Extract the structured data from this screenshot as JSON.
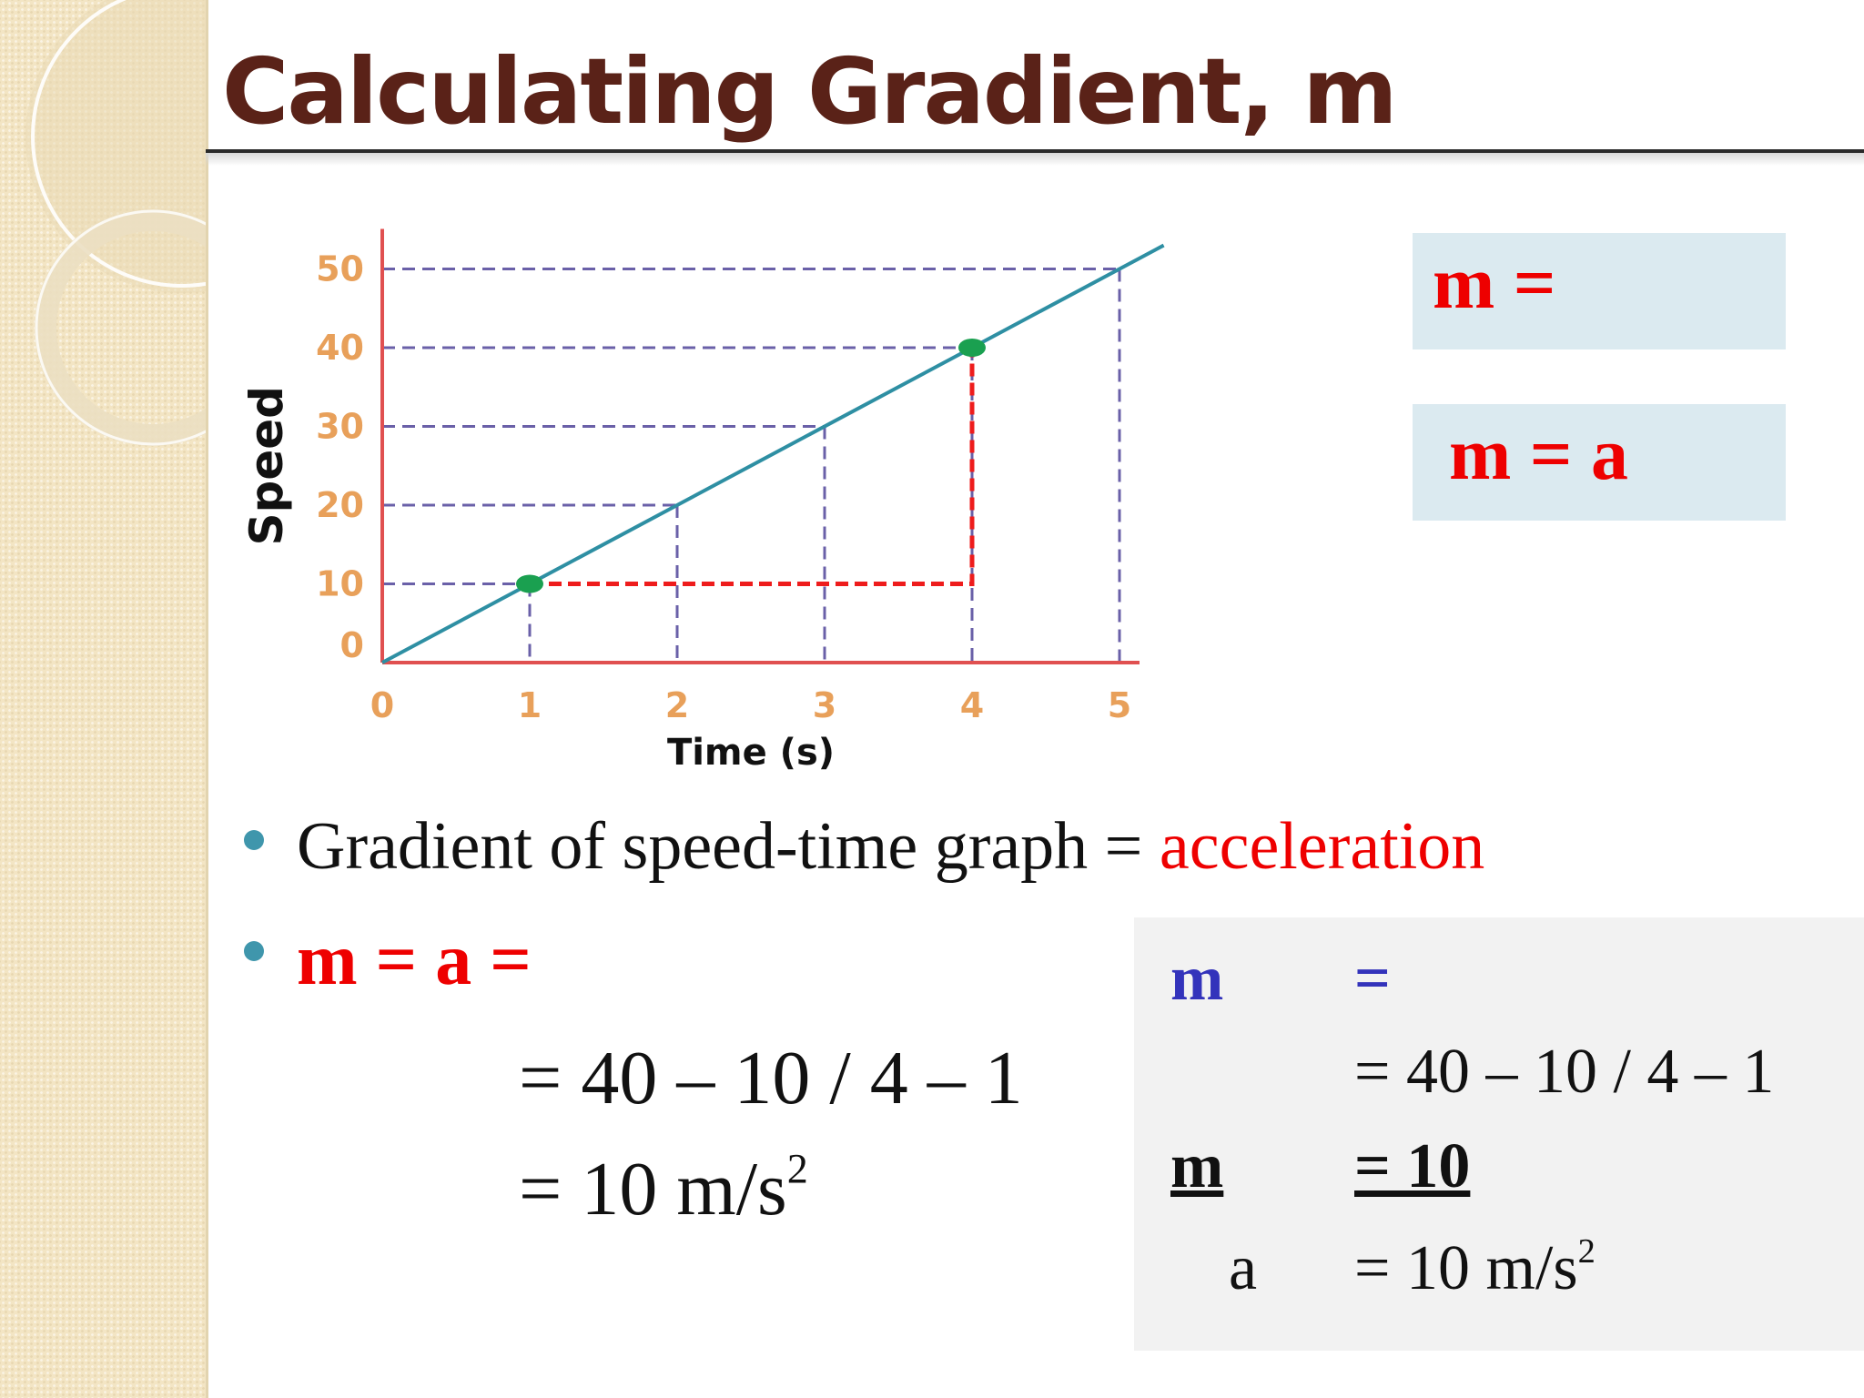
{
  "slide": {
    "title": "Calculating Gradient, m"
  },
  "formula_boxes": {
    "box1": "m =",
    "box2": "m = a"
  },
  "bullets": {
    "b1_text": "Gradient of speed-time graph = ",
    "b1_accent": "acceleration",
    "b2_text": "m = a =",
    "work_line1": "= 40 – 10 / 4 – 1",
    "work_line2_prefix": "= 10 m/s",
    "work_line2_sup": "2"
  },
  "panel": {
    "row1_left": "m",
    "row1_right": "=",
    "row2_right": "= 40 – 10 / 4 – 1",
    "row3_left": "m",
    "row3_right": "= 10",
    "row4_left": "a",
    "row4_right_prefix": "= 10 m/s",
    "row4_right_sup": "2"
  },
  "colors": {
    "title": "#5a2218",
    "accent_red": "#ee0000",
    "panel_blue": "#3333bb",
    "bullet": "#3f96ac",
    "chart_axis": "#e05050",
    "chart_line": "#2e8fa3",
    "chart_grid_dash": "#6a60a8",
    "chart_marker": "#1aa050",
    "chart_tick": "#e8a05a"
  },
  "chart_data": {
    "type": "line",
    "xlabel": "Time (s)",
    "ylabel": "Speed",
    "xlim": [
      0,
      5
    ],
    "ylim": [
      0,
      50
    ],
    "x_ticks": [
      "0",
      "1",
      "2",
      "3",
      "4",
      "5"
    ],
    "y_ticks": [
      "0",
      "10",
      "20",
      "30",
      "40",
      "50"
    ],
    "series": [
      {
        "x": [
          0,
          1,
          2,
          3,
          4,
          5
        ],
        "y": [
          0,
          10,
          20,
          30,
          40,
          50
        ]
      }
    ],
    "highlighted_points": [
      {
        "x": 1,
        "y": 10
      },
      {
        "x": 4,
        "y": 40
      }
    ],
    "gradient_triangle": {
      "x1": 1,
      "y1": 10,
      "x2": 4,
      "y2": 40
    },
    "grid": "dashed guides to each point"
  }
}
